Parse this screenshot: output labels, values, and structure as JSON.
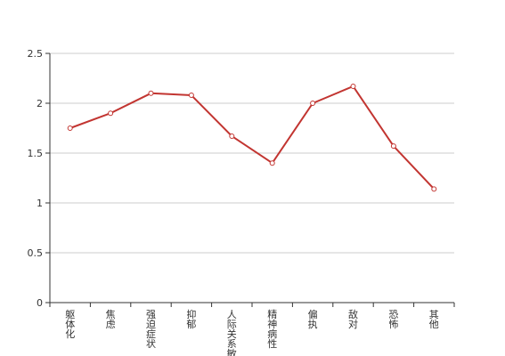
{
  "chart_data": {
    "type": "line",
    "title": "",
    "xlabel": "",
    "ylabel": "",
    "categories": [
      "躯体化",
      "焦虑",
      "强迫症状",
      "抑郁",
      "人际关系敏感",
      "精神病性",
      "偏执",
      "敌对",
      "恐怖",
      "其他"
    ],
    "series": [
      {
        "values": [
          1.75,
          1.9,
          2.1,
          2.08,
          1.67,
          1.4,
          2.0,
          2.17,
          1.57,
          1.14
        ],
        "color": "#c23531"
      }
    ],
    "ylim": [
      0,
      2.5
    ],
    "yticks": [
      "0",
      "0.5",
      "1",
      "1.5",
      "2",
      "2.5"
    ],
    "grid": true,
    "legend": "none"
  }
}
